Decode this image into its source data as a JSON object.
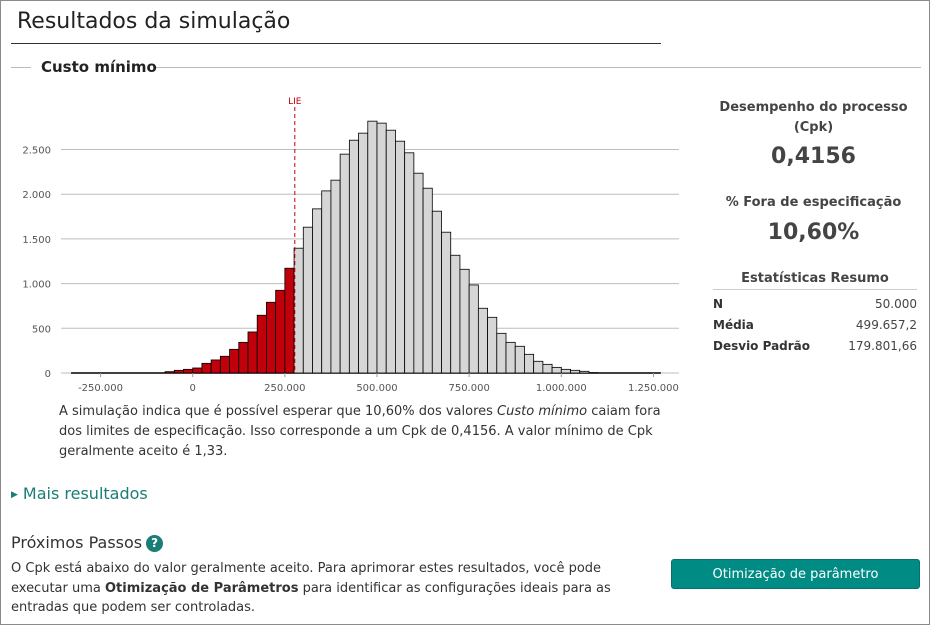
{
  "title": "Resultados da simulação",
  "section_title": "Custo mínimo",
  "chart_data": {
    "type": "bar",
    "subtype": "histogram",
    "bin_width": 25000,
    "bin_starts": [
      -75000,
      -50000,
      -25000,
      0,
      25000,
      50000,
      75000,
      100000,
      125000,
      150000,
      175000,
      200000,
      225000,
      250000,
      275000,
      300000,
      325000,
      350000,
      375000,
      400000,
      425000,
      450000,
      475000,
      500000,
      525000,
      550000,
      575000,
      600000,
      625000,
      650000,
      675000,
      700000,
      725000,
      750000,
      775000,
      800000,
      825000,
      850000,
      875000,
      900000,
      925000,
      950000,
      975000,
      1000000,
      1025000,
      1050000,
      1075000
    ],
    "values": [
      15,
      30,
      41,
      56,
      108,
      146,
      187,
      265,
      343,
      459,
      646,
      791,
      925,
      1172,
      1396,
      1631,
      1836,
      2037,
      2157,
      2448,
      2604,
      2683,
      2817,
      2795,
      2716,
      2593,
      2463,
      2235,
      2067,
      1810,
      1575,
      1317,
      1160,
      985,
      724,
      623,
      444,
      343,
      299,
      209,
      131,
      97,
      63,
      41,
      30,
      19,
      4
    ],
    "out_of_spec_color": "#c0000b",
    "in_spec_color": "#d6d6d6",
    "xlim": [
      -330000,
      1270000
    ],
    "ylim": [
      0,
      2900
    ],
    "x_ticks": [
      -250000,
      0,
      250000,
      500000,
      750000,
      1000000,
      1250000
    ],
    "x_tick_labels": [
      "-250.000",
      "0",
      "250.000",
      "500.000",
      "750.000",
      "1.000.000",
      "1.250.000"
    ],
    "y_ticks": [
      0,
      500,
      1000,
      1500,
      2000,
      2500
    ],
    "y_tick_labels": [
      "0",
      "500",
      "1.000",
      "1.500",
      "2.000",
      "2.500"
    ],
    "grid": true,
    "spec_limit": {
      "label": "LIE",
      "value": 277000,
      "color": "#c0000b"
    }
  },
  "summary": {
    "before": "A simulação indica que é possível esperar que 10,60% dos valores ",
    "italic": "Custo mínimo",
    "after": " caiam fora dos limites de especificação. Isso corresponde a um Cpk de 0,4156. A valor mínimo de Cpk geralmente aceito é 1,33."
  },
  "metrics": {
    "cpk_label": "Desempenho do processo (Cpk)",
    "cpk_value": "0,4156",
    "oos_label": "% Fora de especificação",
    "oos_value": "10,60%"
  },
  "stats": {
    "title": "Estatísticas Resumo",
    "rows": [
      {
        "label": "N",
        "value": "50.000"
      },
      {
        "label": "Média",
        "value": "499.657,2"
      },
      {
        "label": "Desvio Padrão",
        "value": "179.801,66"
      }
    ]
  },
  "more_results": "Mais resultados",
  "next_steps": {
    "title": "Próximos Passos",
    "help_icon": "?",
    "body_before": "O Cpk está abaixo do valor geralmente aceito. Para aprimorar estes resultados, você pode executar uma ",
    "body_bold": "Otimização de Parâmetros",
    "body_after": " para identificar as configurações ideais para as entradas que podem ser controladas.",
    "button": "Otimização de parâmetro"
  }
}
